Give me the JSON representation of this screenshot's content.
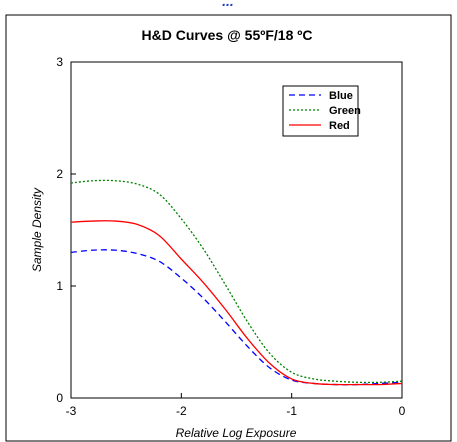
{
  "header_cut": "...",
  "chart_data": {
    "type": "line",
    "title": "H&D Curves @ 55ºF/18 ºC",
    "xlabel": "Relative Log Exposure",
    "ylabel": "Sample Density",
    "xlim": [
      -3,
      0
    ],
    "ylim": [
      0,
      3
    ],
    "xticks": [
      -3,
      -2,
      -1,
      0
    ],
    "yticks": [
      0,
      1,
      2,
      3
    ],
    "grid": false,
    "legend_position": "top-right",
    "series": [
      {
        "name": "Blue",
        "color": "#0000ff",
        "dash": "dashed",
        "x": [
          -3.0,
          -2.8,
          -2.6,
          -2.4,
          -2.2,
          -2.0,
          -1.8,
          -1.6,
          -1.4,
          -1.2,
          -1.0,
          -0.8,
          -0.6,
          -0.4,
          -0.2,
          0.0
        ],
        "y": [
          1.3,
          1.32,
          1.32,
          1.29,
          1.22,
          1.07,
          0.89,
          0.68,
          0.46,
          0.27,
          0.16,
          0.13,
          0.12,
          0.12,
          0.13,
          0.14
        ]
      },
      {
        "name": "Green",
        "color": "#008000",
        "dash": "dotted",
        "x": [
          -3.0,
          -2.8,
          -2.6,
          -2.4,
          -2.2,
          -2.0,
          -1.8,
          -1.6,
          -1.4,
          -1.2,
          -1.0,
          -0.8,
          -0.6,
          -0.4,
          -0.2,
          0.0
        ],
        "y": [
          1.92,
          1.94,
          1.94,
          1.91,
          1.82,
          1.6,
          1.33,
          1.01,
          0.68,
          0.4,
          0.23,
          0.17,
          0.15,
          0.14,
          0.14,
          0.15
        ]
      },
      {
        "name": "Red",
        "color": "#ff0000",
        "dash": "solid",
        "x": [
          -3.0,
          -2.8,
          -2.6,
          -2.4,
          -2.2,
          -2.0,
          -1.8,
          -1.6,
          -1.4,
          -1.2,
          -1.0,
          -0.8,
          -0.6,
          -0.4,
          -0.2,
          0.0
        ],
        "y": [
          1.57,
          1.58,
          1.58,
          1.55,
          1.45,
          1.24,
          1.03,
          0.79,
          0.53,
          0.31,
          0.17,
          0.13,
          0.12,
          0.12,
          0.12,
          0.13
        ]
      }
    ]
  }
}
